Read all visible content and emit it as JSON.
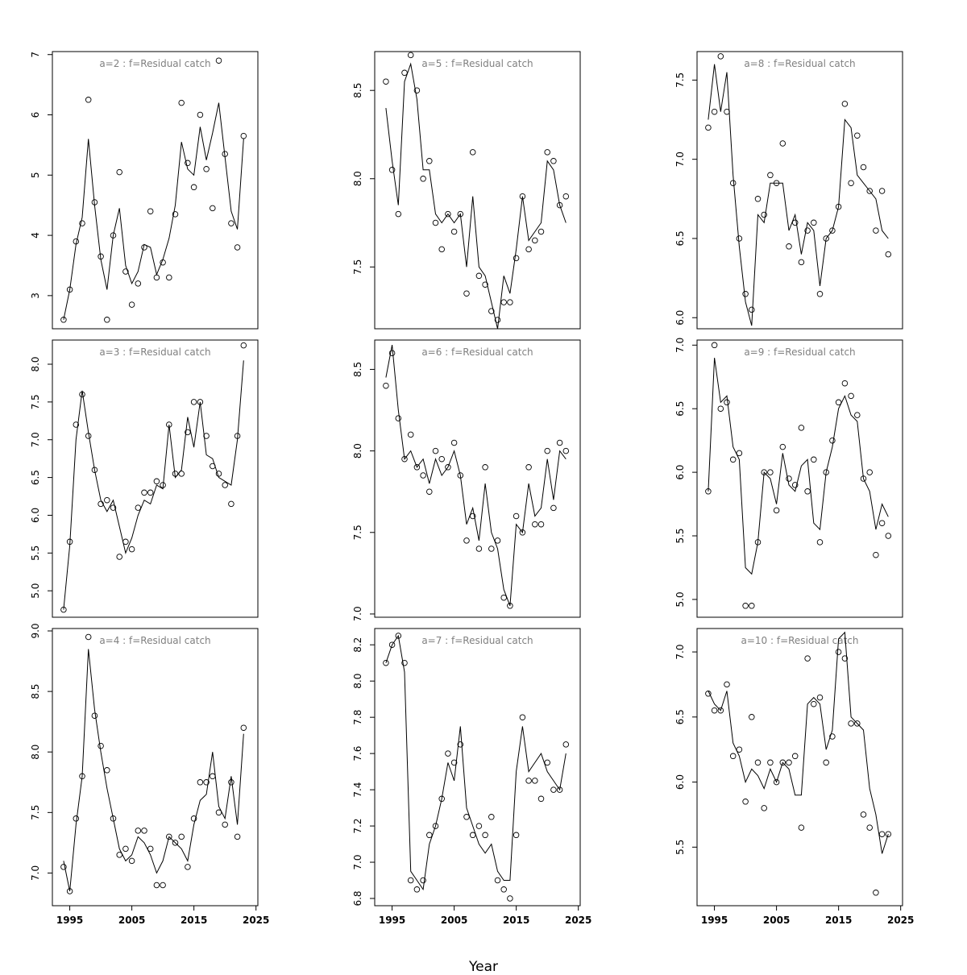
{
  "figure": {
    "xlabel": "Year",
    "background": "#ffffff",
    "axis_color": "#000000",
    "title_color": "#808080"
  },
  "chart_data": {
    "type": "line",
    "note": "3x3 grid of observed (circles) vs fitted (line) residual catch by age, row-major display order",
    "years": [
      1994,
      1995,
      1996,
      1997,
      1998,
      1999,
      2000,
      2001,
      2002,
      2003,
      2004,
      2005,
      2006,
      2007,
      2008,
      2009,
      2010,
      2011,
      2012,
      2013,
      2014,
      2015,
      2016,
      2017,
      2018,
      2019,
      2020,
      2021,
      2022,
      2023
    ],
    "xlim": [
      1992.2,
      2025.3
    ],
    "xticks": [
      1995,
      2005,
      2015,
      2025
    ],
    "xtick_labels": [
      "1995",
      "2005",
      "2015",
      "2025"
    ],
    "panels": [
      {
        "id": "a2",
        "title": "a=2  :  f=Residual catch",
        "ylim": [
          2.45,
          7.05
        ],
        "yticks": [
          3,
          4,
          5,
          6,
          7
        ],
        "ytick_labels": [
          "3",
          "4",
          "5",
          "6",
          "7"
        ],
        "show_x_labels": false,
        "obs": [
          2.6,
          3.1,
          3.9,
          4.2,
          6.25,
          4.55,
          3.65,
          2.6,
          4.0,
          5.05,
          3.4,
          2.85,
          3.2,
          3.8,
          4.4,
          3.3,
          3.55,
          3.3,
          4.35,
          6.2,
          5.2,
          4.8,
          6.0,
          5.1,
          4.45,
          6.9,
          5.35,
          4.2,
          3.8,
          5.65
        ],
        "fit": [
          2.6,
          3.1,
          3.85,
          4.3,
          5.6,
          4.5,
          3.6,
          3.1,
          4.0,
          4.45,
          3.5,
          3.2,
          3.4,
          3.85,
          3.8,
          3.35,
          3.6,
          3.95,
          4.5,
          5.55,
          5.1,
          5.0,
          5.8,
          5.25,
          5.7,
          6.2,
          5.3,
          4.4,
          4.1,
          5.6
        ]
      },
      {
        "id": "a5",
        "title": "a=5  :  f=Residual catch",
        "ylim": [
          7.15,
          8.72
        ],
        "yticks": [
          7.5,
          8.0,
          8.5
        ],
        "ytick_labels": [
          "7.5",
          "8.0",
          "8.5"
        ],
        "show_x_labels": false,
        "obs": [
          8.55,
          8.05,
          7.8,
          8.6,
          8.7,
          8.5,
          8.0,
          8.1,
          7.75,
          7.6,
          7.8,
          7.7,
          7.8,
          7.35,
          8.15,
          7.45,
          7.4,
          7.25,
          7.2,
          7.3,
          7.3,
          7.55,
          7.9,
          7.6,
          7.65,
          7.7,
          8.15,
          8.1,
          7.85,
          7.9
        ],
        "fit": [
          8.4,
          8.1,
          7.85,
          8.55,
          8.65,
          8.45,
          8.05,
          8.05,
          7.8,
          7.75,
          7.8,
          7.75,
          7.8,
          7.5,
          7.9,
          7.5,
          7.45,
          7.3,
          7.15,
          7.45,
          7.35,
          7.6,
          7.9,
          7.65,
          7.7,
          7.75,
          8.1,
          8.05,
          7.85,
          7.75
        ]
      },
      {
        "id": "a8",
        "title": "a=8  :  f=Residual catch",
        "ylim": [
          5.93,
          7.68
        ],
        "yticks": [
          6.0,
          6.5,
          7.0,
          7.5
        ],
        "ytick_labels": [
          "6.0",
          "6.5",
          "7.0",
          "7.5"
        ],
        "show_x_labels": false,
        "obs": [
          7.2,
          7.3,
          7.65,
          7.3,
          6.85,
          6.5,
          6.15,
          6.05,
          6.75,
          6.65,
          6.9,
          6.85,
          7.1,
          6.45,
          6.6,
          6.35,
          6.55,
          6.6,
          6.15,
          6.5,
          6.55,
          6.7,
          7.35,
          6.85,
          7.15,
          6.95,
          6.8,
          6.55,
          6.8,
          6.4
        ],
        "fit": [
          7.25,
          7.6,
          7.3,
          7.55,
          6.9,
          6.45,
          6.1,
          5.95,
          6.65,
          6.6,
          6.85,
          6.85,
          6.85,
          6.55,
          6.65,
          6.4,
          6.6,
          6.55,
          6.2,
          6.5,
          6.55,
          6.7,
          7.25,
          7.2,
          6.9,
          6.85,
          6.8,
          6.75,
          6.55,
          6.5
        ]
      },
      {
        "id": "a3",
        "title": "a=3  :  f=Residual catch",
        "ylim": [
          4.65,
          8.32
        ],
        "yticks": [
          5.0,
          5.5,
          6.0,
          6.5,
          7.0,
          7.5,
          8.0
        ],
        "ytick_labels": [
          "5.0",
          "5.5",
          "6.0",
          "6.5",
          "7.0",
          "7.5",
          "8.0"
        ],
        "show_x_labels": false,
        "obs": [
          4.75,
          5.65,
          7.2,
          7.6,
          7.05,
          6.6,
          6.15,
          6.2,
          6.1,
          5.45,
          5.65,
          5.55,
          6.1,
          6.3,
          6.3,
          6.45,
          6.4,
          7.2,
          6.55,
          6.55,
          7.1,
          7.5,
          7.5,
          7.05,
          6.65,
          6.55,
          6.4,
          6.15,
          7.05,
          8.25
        ],
        "fit": [
          4.75,
          5.6,
          7.0,
          7.65,
          7.1,
          6.6,
          6.2,
          6.05,
          6.2,
          5.85,
          5.5,
          5.7,
          6.0,
          6.2,
          6.15,
          6.4,
          6.35,
          7.2,
          6.5,
          6.6,
          7.3,
          6.9,
          7.5,
          6.8,
          6.75,
          6.5,
          6.45,
          6.4,
          7.0,
          8.05
        ]
      },
      {
        "id": "a6",
        "title": "a=6  :  f=Residual catch",
        "ylim": [
          6.98,
          8.68
        ],
        "yticks": [
          7.0,
          7.5,
          8.0,
          8.5
        ],
        "ytick_labels": [
          "7.0",
          "7.5",
          "8.0",
          "8.5"
        ],
        "show_x_labels": false,
        "obs": [
          8.4,
          8.6,
          8.2,
          7.95,
          8.1,
          7.9,
          7.85,
          7.75,
          8.0,
          7.95,
          7.9,
          8.05,
          7.85,
          7.45,
          7.6,
          7.4,
          7.9,
          7.4,
          7.45,
          7.1,
          7.05,
          7.6,
          7.5,
          7.9,
          7.55,
          7.55,
          8.0,
          7.65,
          8.05,
          8.0
        ],
        "fit": [
          8.45,
          8.65,
          8.25,
          7.95,
          8.0,
          7.9,
          7.95,
          7.8,
          7.95,
          7.85,
          7.9,
          8.0,
          7.85,
          7.55,
          7.65,
          7.45,
          7.8,
          7.5,
          7.4,
          7.15,
          7.05,
          7.55,
          7.5,
          7.8,
          7.6,
          7.65,
          7.95,
          7.7,
          8.0,
          7.95
        ]
      },
      {
        "id": "a9",
        "title": "a=9  :  f=Residual catch",
        "ylim": [
          4.86,
          7.04
        ],
        "yticks": [
          5.0,
          5.5,
          6.0,
          6.5,
          7.0
        ],
        "ytick_labels": [
          "5.0",
          "5.5",
          "6.0",
          "6.5",
          "7.0"
        ],
        "show_x_labels": false,
        "obs": [
          5.85,
          7.0,
          6.5,
          6.55,
          6.1,
          6.15,
          4.95,
          4.95,
          5.45,
          6.0,
          6.0,
          5.7,
          6.2,
          5.95,
          5.9,
          6.35,
          5.85,
          6.1,
          5.45,
          6.0,
          6.25,
          6.55,
          6.7,
          6.6,
          6.45,
          5.95,
          6.0,
          5.35,
          5.6,
          5.5
        ],
        "fit": [
          5.85,
          6.9,
          6.55,
          6.6,
          6.2,
          6.1,
          5.25,
          5.2,
          5.45,
          6.0,
          5.95,
          5.75,
          6.15,
          5.9,
          5.85,
          6.05,
          6.1,
          5.6,
          5.55,
          6.0,
          6.2,
          6.5,
          6.6,
          6.45,
          6.4,
          5.95,
          5.85,
          5.55,
          5.75,
          5.65
        ]
      },
      {
        "id": "a4",
        "title": "a=4  :  f=Residual catch",
        "ylim": [
          6.73,
          9.02
        ],
        "yticks": [
          7.0,
          7.5,
          8.0,
          8.5,
          9.0
        ],
        "ytick_labels": [
          "7.0",
          "7.5",
          "8.0",
          "8.5",
          "9.0"
        ],
        "show_x_labels": true,
        "obs": [
          7.05,
          6.85,
          7.45,
          7.8,
          8.95,
          8.3,
          8.05,
          7.85,
          7.45,
          7.15,
          7.2,
          7.1,
          7.35,
          7.35,
          7.2,
          6.9,
          6.9,
          7.3,
          7.25,
          7.3,
          7.05,
          7.45,
          7.75,
          7.75,
          7.8,
          7.5,
          7.4,
          7.75,
          7.3,
          8.2
        ],
        "fit": [
          7.1,
          6.85,
          7.4,
          7.8,
          8.85,
          8.35,
          8.0,
          7.7,
          7.45,
          7.2,
          7.1,
          7.15,
          7.3,
          7.25,
          7.15,
          7.0,
          7.1,
          7.3,
          7.25,
          7.2,
          7.1,
          7.4,
          7.6,
          7.65,
          8.0,
          7.55,
          7.45,
          7.8,
          7.4,
          8.15
        ]
      },
      {
        "id": "a7",
        "title": "a=7  :  f=Residual catch",
        "ylim": [
          6.76,
          8.29
        ],
        "yticks": [
          6.8,
          7.0,
          7.2,
          7.4,
          7.6,
          7.8,
          8.0,
          8.2
        ],
        "ytick_labels": [
          "6.8",
          "7.0",
          "7.2",
          "7.4",
          "7.6",
          "7.8",
          "8.0",
          "8.2"
        ],
        "show_x_labels": true,
        "obs": [
          8.1,
          8.2,
          8.25,
          8.1,
          6.9,
          6.85,
          6.9,
          7.15,
          7.2,
          7.35,
          7.6,
          7.55,
          7.65,
          7.25,
          7.15,
          7.2,
          7.15,
          7.25,
          6.9,
          6.85,
          6.8,
          7.15,
          7.8,
          7.45,
          7.45,
          7.35,
          7.55,
          7.4,
          7.4,
          7.65
        ],
        "fit": [
          8.1,
          8.2,
          8.25,
          8.05,
          6.95,
          6.9,
          6.85,
          7.1,
          7.2,
          7.35,
          7.55,
          7.45,
          7.75,
          7.3,
          7.2,
          7.1,
          7.05,
          7.1,
          6.95,
          6.9,
          6.9,
          7.5,
          7.75,
          7.5,
          7.55,
          7.6,
          7.5,
          7.45,
          7.4,
          7.6
        ]
      },
      {
        "id": "a10",
        "title": "a=10  :  f=Residual catch",
        "ylim": [
          5.05,
          7.18
        ],
        "yticks": [
          5.5,
          6.0,
          6.5,
          7.0
        ],
        "ytick_labels": [
          "5.5",
          "6.0",
          "6.5",
          "7.0"
        ],
        "show_x_labels": true,
        "obs": [
          6.68,
          6.55,
          6.55,
          6.75,
          6.2,
          6.25,
          5.85,
          6.5,
          6.15,
          5.8,
          6.15,
          6.0,
          6.15,
          6.15,
          6.2,
          5.65,
          6.95,
          6.6,
          6.65,
          6.15,
          6.35,
          7.0,
          6.95,
          6.45,
          6.45,
          5.75,
          5.65,
          5.15,
          5.6,
          5.6
        ],
        "fit": [
          6.7,
          6.6,
          6.55,
          6.7,
          6.3,
          6.2,
          6.0,
          6.1,
          6.05,
          5.95,
          6.1,
          6.0,
          6.15,
          6.1,
          5.9,
          5.9,
          6.6,
          6.65,
          6.6,
          6.25,
          6.4,
          7.1,
          7.15,
          6.5,
          6.45,
          6.4,
          5.95,
          5.75,
          5.45,
          5.6
        ]
      }
    ]
  }
}
